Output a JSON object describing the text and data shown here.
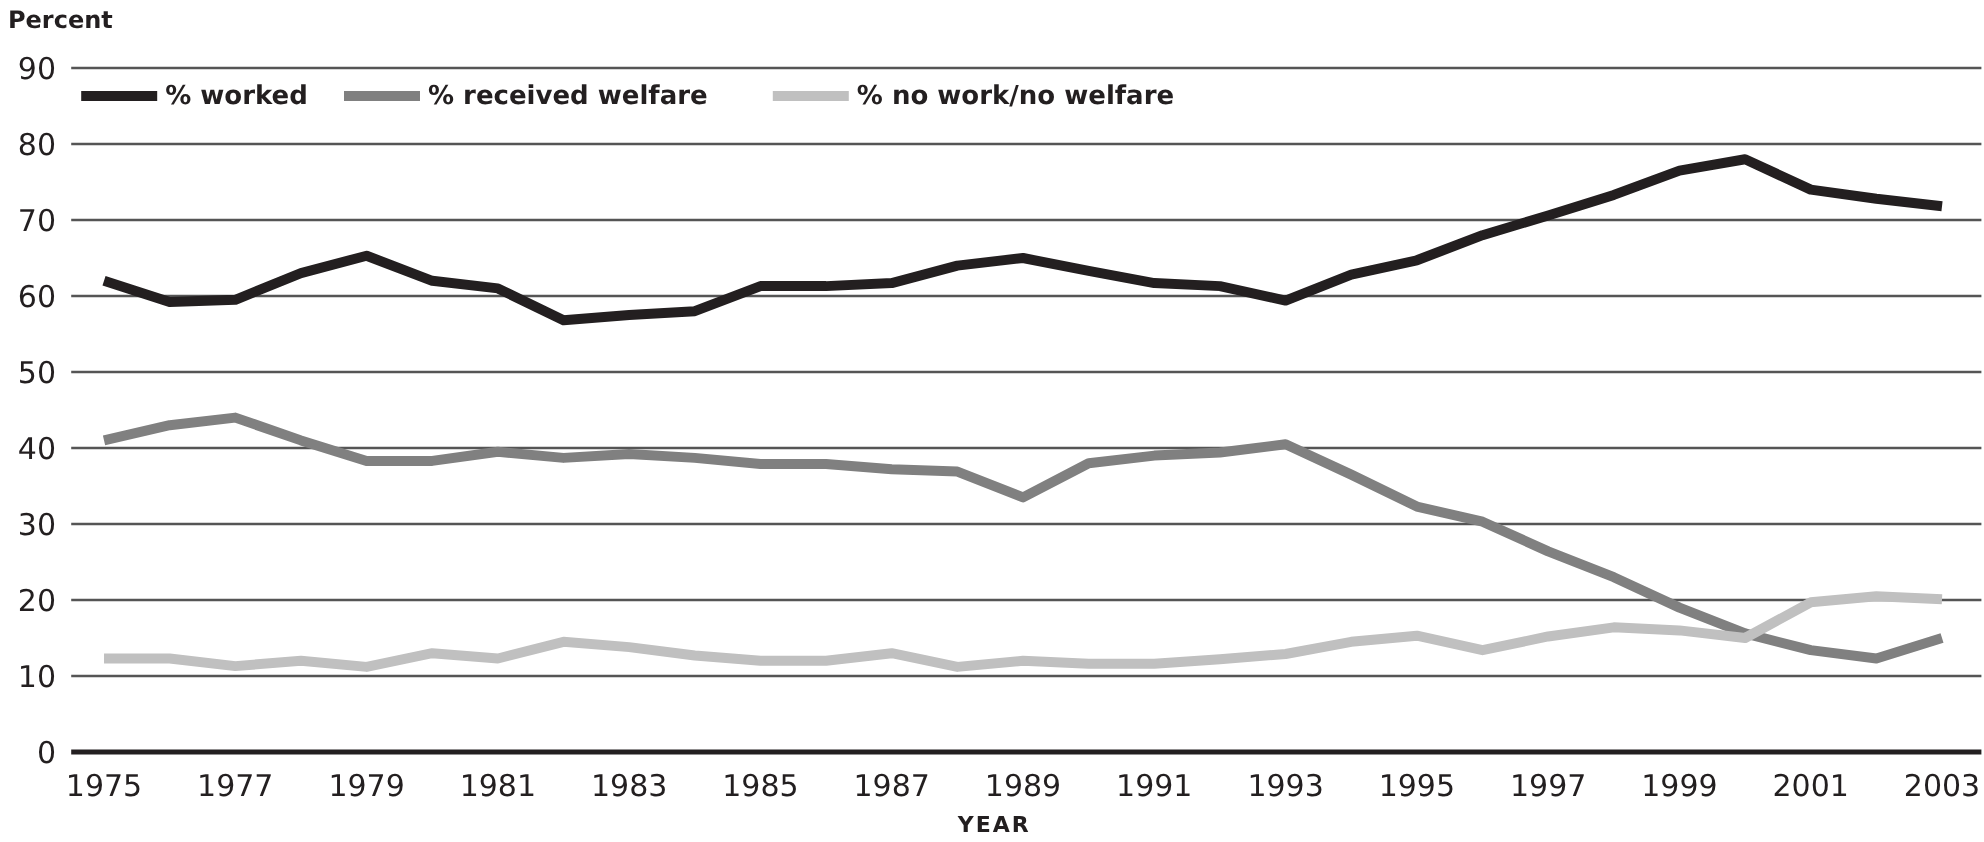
{
  "chart_data": {
    "type": "line",
    "ylabel": "Percent",
    "xlabel": "YEAR",
    "x": [
      1975,
      1976,
      1977,
      1978,
      1979,
      1980,
      1981,
      1982,
      1983,
      1984,
      1985,
      1986,
      1987,
      1988,
      1989,
      1990,
      1991,
      1992,
      1993,
      1994,
      1995,
      1996,
      1997,
      1998,
      1999,
      2000,
      2001,
      2002,
      2003
    ],
    "series": [
      {
        "name": "% worked",
        "color": "#231f20",
        "values": [
          62,
          59.2,
          59.5,
          63,
          65.3,
          62,
          61,
          56.8,
          57.5,
          58,
          61.3,
          61.3,
          61.7,
          64,
          65,
          63.3,
          61.7,
          61.3,
          59.4,
          62.8,
          64.7,
          68,
          70.6,
          73.3,
          76.5,
          78,
          74,
          72.8,
          71.8
        ]
      },
      {
        "name": "% received welfare",
        "color": "#808080",
        "values": [
          41,
          43,
          44,
          41,
          38.3,
          38.3,
          39.5,
          38.7,
          39.2,
          38.7,
          37.9,
          37.9,
          37.2,
          36.9,
          33.5,
          38,
          39,
          39.4,
          40.5,
          36.5,
          32.3,
          30.3,
          26.4,
          23,
          19,
          15.6,
          13.4,
          12.3,
          15
        ]
      },
      {
        "name": "% no work/no welfare",
        "color": "#c0c0c0",
        "values": [
          12.3,
          12.3,
          11.3,
          12,
          11.2,
          13,
          12.3,
          14.5,
          13.8,
          12.7,
          12,
          12,
          13,
          11.2,
          12,
          11.6,
          11.6,
          12.2,
          12.9,
          14.5,
          15.3,
          13.4,
          15.2,
          16.4,
          16,
          15,
          19.7,
          20.5,
          20.1
        ]
      }
    ],
    "xlim": [
      1974.5,
      2003.6
    ],
    "xticks": [
      1975,
      1977,
      1979,
      1981,
      1983,
      1985,
      1987,
      1989,
      1991,
      1993,
      1995,
      1997,
      1999,
      2001,
      2003
    ],
    "ylim": [
      0,
      90
    ],
    "yticks": [
      0,
      10,
      20,
      30,
      40,
      50,
      60,
      70,
      80,
      90
    ],
    "grid": "y",
    "legend": "top left",
    "marker": "none",
    "line_style": "solid"
  }
}
